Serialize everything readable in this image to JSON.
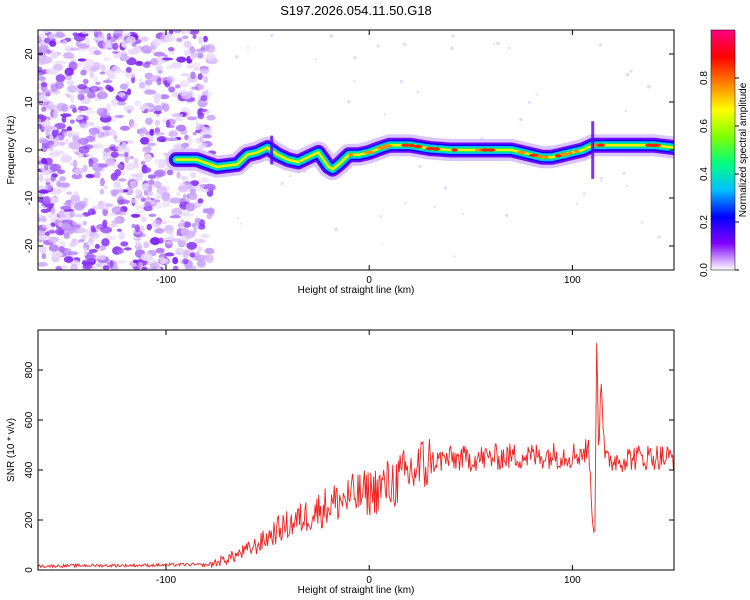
{
  "title": "S197.2026.054.11.50.G18",
  "chart_data": [
    {
      "type": "heatmap",
      "name": "spectrogram",
      "xlabel": "Height of straight line (km)",
      "ylabel": "Frequency (Hz)",
      "xlim": [
        -163,
        150
      ],
      "ylim": [
        -25,
        25
      ],
      "xticks": [
        "-100",
        "0",
        "100"
      ],
      "yticks": [
        "20",
        "10",
        "0",
        "-10",
        "-20"
      ],
      "ridge": {
        "x": [
          -95,
          -85,
          -75,
          -65,
          -60,
          -55,
          -50,
          -45,
          -40,
          -35,
          -30,
          -25,
          -20,
          -18,
          -15,
          -10,
          -5,
          0,
          5,
          10,
          20,
          30,
          40,
          50,
          60,
          70,
          80,
          85,
          90,
          95,
          100,
          105,
          110,
          115,
          120,
          130,
          140,
          150
        ],
        "y": [
          -2,
          -2,
          -3.5,
          -3,
          -1,
          -0.5,
          0.5,
          -1,
          -2,
          -2.5,
          -1.5,
          -0.5,
          -3.5,
          -4,
          -3,
          -1,
          -1,
          -0.5,
          0.3,
          1,
          1,
          0.3,
          0,
          0,
          0,
          0,
          -1,
          -1.5,
          -1.5,
          -1,
          -0.5,
          0,
          1,
          1,
          1,
          1,
          1,
          0.5
        ]
      },
      "noise_region_x": [
        -163,
        -85
      ]
    },
    {
      "type": "colorbar",
      "label": "Normalized spectral amplitude",
      "range": [
        0,
        1
      ],
      "ticks": [
        "0.0",
        "0.2",
        "0.4",
        "0.6",
        "0.8"
      ],
      "colors": [
        "#ffffff",
        "#8000ff",
        "#0000ff",
        "#00c0ff",
        "#00ff80",
        "#80ff00",
        "#ffff00",
        "#ff8000",
        "#ff0000",
        "#ff0080"
      ]
    },
    {
      "type": "line",
      "name": "snr",
      "xlabel": "Height of straight line (km)",
      "ylabel": "SNR (10 * v/v)",
      "xlim": [
        -163,
        150
      ],
      "ylim": [
        0,
        960
      ],
      "xticks": [
        "-100",
        "0",
        "100"
      ],
      "yticks": [
        "0",
        "200",
        "400",
        "600",
        "800"
      ],
      "color": "#ee2222",
      "series": [
        {
          "name": "SNR",
          "x": [
            -163,
            -140,
            -120,
            -100,
            -90,
            -80,
            -75,
            -70,
            -65,
            -60,
            -55,
            -50,
            -45,
            -40,
            -35,
            -30,
            -25,
            -20,
            -15,
            -10,
            -5,
            0,
            5,
            10,
            15,
            20,
            25,
            30,
            35,
            40,
            50,
            60,
            70,
            80,
            90,
            100,
            105,
            108,
            110,
            111,
            112,
            113,
            114,
            116,
            118,
            120,
            125,
            130,
            135,
            140,
            145,
            150
          ],
          "y": [
            15,
            18,
            18,
            20,
            22,
            20,
            30,
            45,
            60,
            80,
            100,
            130,
            160,
            180,
            200,
            220,
            240,
            260,
            275,
            290,
            300,
            310,
            325,
            345,
            360,
            390,
            410,
            430,
            440,
            445,
            445,
            450,
            455,
            455,
            460,
            460,
            470,
            480,
            200,
            120,
            950,
            420,
            780,
            430,
            440,
            440,
            445,
            450,
            450,
            455,
            450,
            450
          ]
        }
      ]
    }
  ]
}
